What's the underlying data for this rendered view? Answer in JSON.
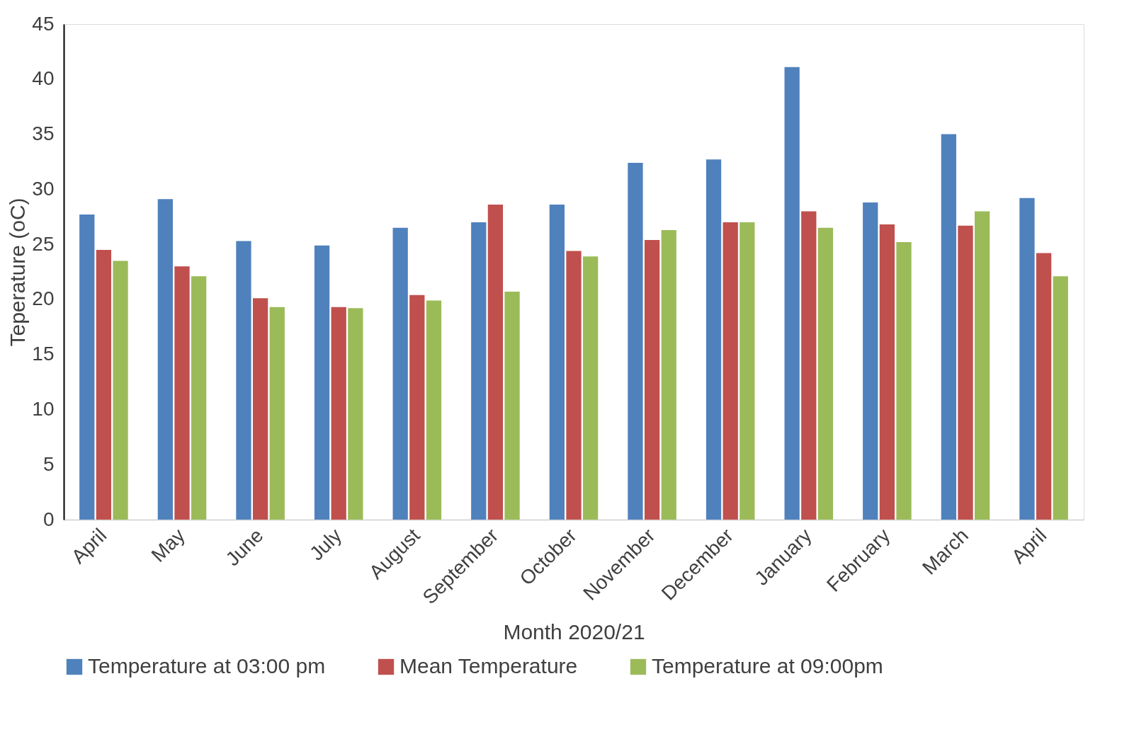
{
  "chart_data": {
    "type": "bar",
    "xlabel": "Month 2020/21",
    "ylabel": "Teperature (oC)",
    "categories": [
      "April",
      "May",
      "June",
      "July",
      "August",
      "September",
      "October",
      "November",
      "December",
      "January",
      "February",
      "March",
      "April"
    ],
    "series": [
      {
        "name": "Temperature at 03:00 pm",
        "color": "#4f81bd",
        "values": [
          27.7,
          29.1,
          25.3,
          24.9,
          26.5,
          27.0,
          28.6,
          32.4,
          32.7,
          41.1,
          28.8,
          35.0,
          29.2
        ]
      },
      {
        "name": "Mean Temperature",
        "color": "#c0504d",
        "values": [
          24.5,
          23.0,
          20.1,
          19.3,
          20.4,
          28.6,
          24.4,
          25.4,
          27.0,
          28.0,
          26.8,
          26.7,
          24.2
        ]
      },
      {
        "name": "Temperature at 09:00pm",
        "color": "#9bbb59",
        "values": [
          23.5,
          22.1,
          19.3,
          19.2,
          19.9,
          20.7,
          23.9,
          26.3,
          27.0,
          26.5,
          25.2,
          28.0,
          22.1
        ]
      }
    ],
    "ylim": [
      0,
      45
    ],
    "yticks": [
      0,
      5,
      10,
      15,
      20,
      25,
      30,
      35,
      40,
      45
    ],
    "grid": false,
    "legend": "bottom"
  }
}
